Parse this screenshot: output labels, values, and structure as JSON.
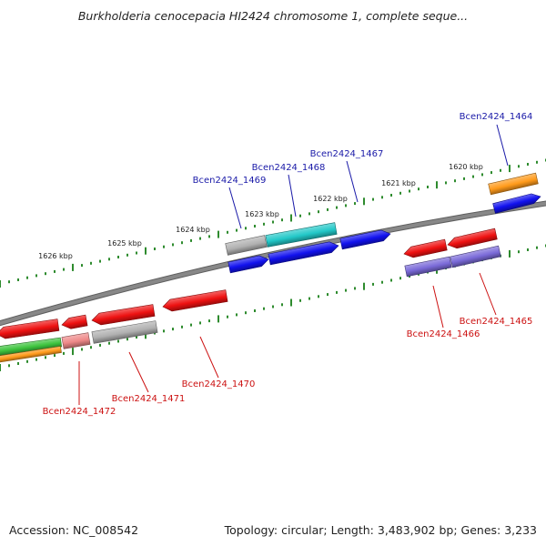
{
  "title": "Burkholderia cenocepacia HI2424 chromosome 1, complete seque...",
  "footer": {
    "accession": "Accession: NC_008542",
    "topology": "Topology: circular; Length: 3,483,902 bp; Genes: 3,233"
  },
  "colors": {
    "backbone": "#888888",
    "scale_ticks": "#2e8b2e",
    "label_plus": "#1a1aa8",
    "label_minus": "#cc1111",
    "red": "#ee1111",
    "blue": "#1111ee",
    "cyan": "#22c8c8",
    "gray": "#b0b0b0",
    "orange": "#ff9a1a",
    "purple": "#7a6ad8",
    "green": "#3ec43e",
    "pink": "#ee8888"
  },
  "scale": {
    "kbp_labels": [
      "1620 kbp",
      "1621 kbp",
      "1622 kbp",
      "1623 kbp",
      "1624 kbp",
      "1625 kbp",
      "1626 kbp"
    ]
  },
  "genes_labeled": [
    {
      "name": "Bcen2424_1464",
      "strand": "plus"
    },
    {
      "name": "Bcen2424_1467",
      "strand": "plus"
    },
    {
      "name": "Bcen2424_1468",
      "strand": "plus"
    },
    {
      "name": "Bcen2424_1469",
      "strand": "plus"
    },
    {
      "name": "Bcen2424_1465",
      "strand": "minus"
    },
    {
      "name": "Bcen2424_1466",
      "strand": "minus"
    },
    {
      "name": "Bcen2424_1470",
      "strand": "minus"
    },
    {
      "name": "Bcen2424_1471",
      "strand": "minus"
    },
    {
      "name": "Bcen2424_1472",
      "strand": "minus"
    }
  ]
}
